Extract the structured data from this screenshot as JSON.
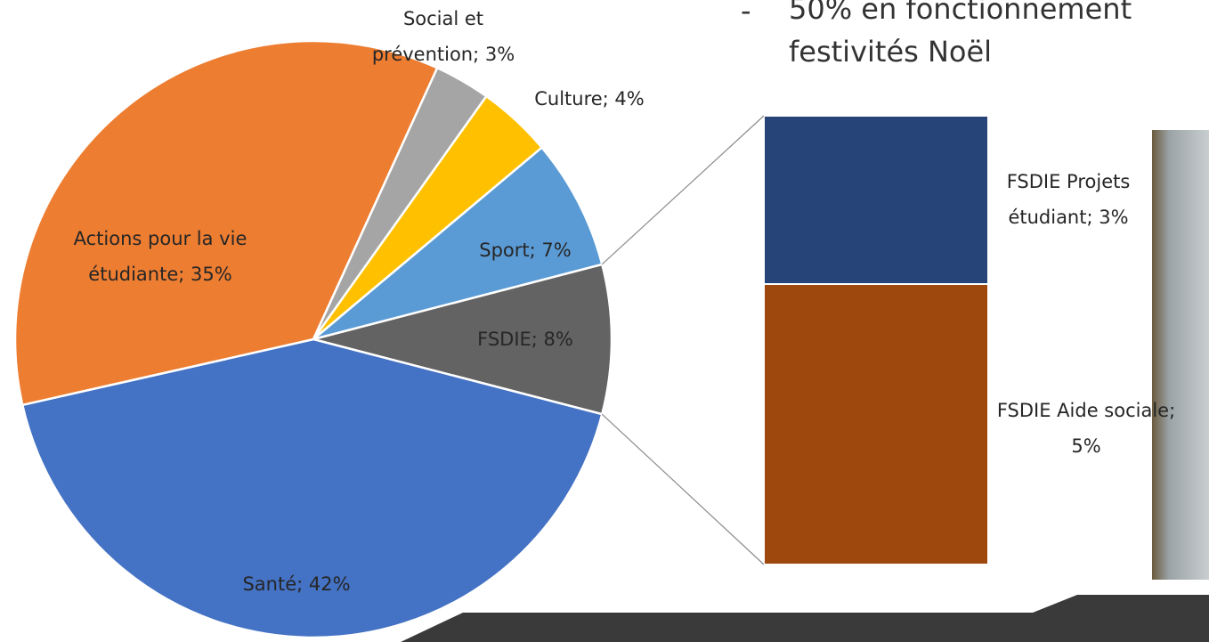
{
  "chart_data": [
    {
      "type": "pie",
      "values": [
        8,
        42,
        35,
        3,
        4,
        7
      ],
      "value_labels": [
        [
          "FSDIE; 8%"
        ],
        [
          "Santé; 42%"
        ],
        [
          "Actions pour la vie",
          "étudiante; 35%"
        ],
        [
          "Social et",
          "prévention; 3%"
        ],
        [
          "Culture; 4%"
        ],
        [
          "Sport; 7%"
        ]
      ],
      "colors": [
        "#636363",
        "#4472c4",
        "#ed7d31",
        "#a5a5a5",
        "#ffc000",
        "#5b9bd5"
      ]
    },
    {
      "type": "stacked_bar",
      "values": [
        3,
        5
      ],
      "value_labels": [
        [
          "FSDIE Projets",
          "étudiant; 3%"
        ],
        [
          "FSDIE Aide sociale;",
          "5%"
        ]
      ],
      "colors": [
        "#264478",
        "#9e480e"
      ]
    }
  ],
  "bullet": {
    "marker": "-",
    "lines": [
      "50% en fonctionnement",
      "festivités Noël"
    ]
  }
}
